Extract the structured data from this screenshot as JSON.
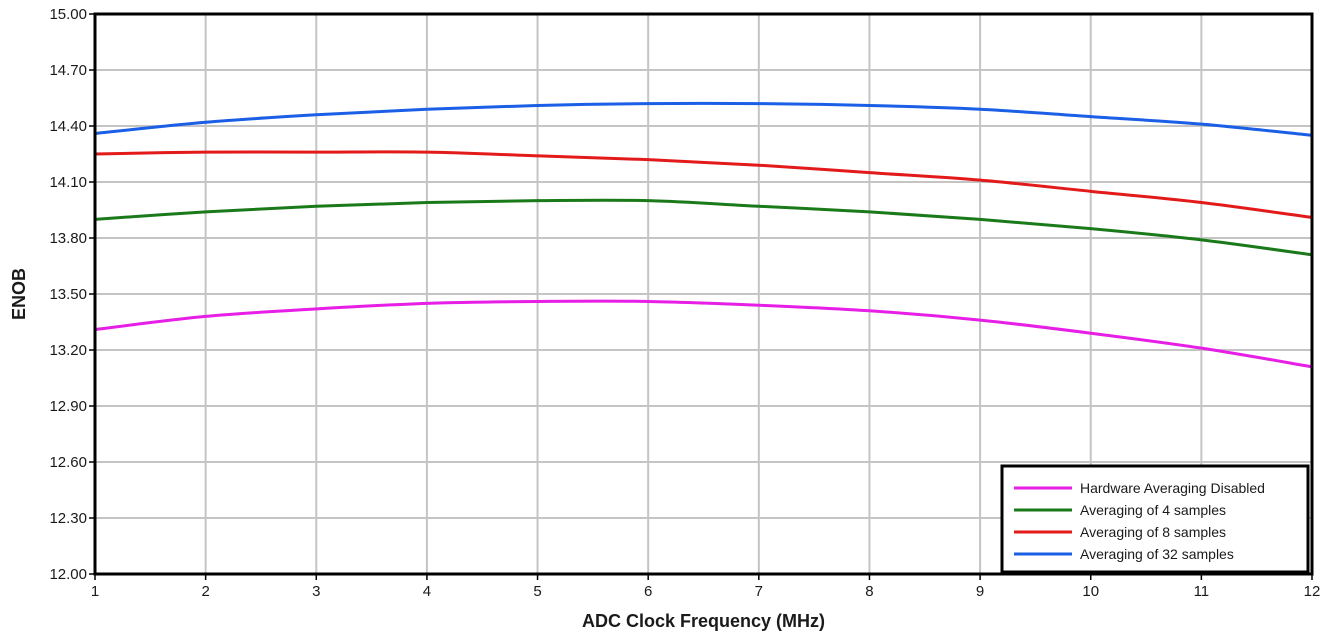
{
  "chart_data": {
    "type": "line",
    "title": "",
    "xlabel": "ADC Clock Frequency (MHz)",
    "ylabel": "ENOB",
    "xlim": [
      1,
      12
    ],
    "ylim": [
      12.0,
      15.0
    ],
    "x_ticks": [
      1,
      2,
      3,
      4,
      5,
      6,
      7,
      8,
      9,
      10,
      11,
      12
    ],
    "x_tick_labels": [
      "1",
      "2",
      "3",
      "4",
      "5",
      "6",
      "7",
      "8",
      "9",
      "10",
      "11",
      "12"
    ],
    "y_ticks": [
      12.0,
      12.3,
      12.6,
      12.9,
      13.2,
      13.5,
      13.8,
      14.1,
      14.4,
      14.7,
      15.0
    ],
    "y_tick_labels": [
      "12.00",
      "12.30",
      "12.60",
      "12.90",
      "13.20",
      "13.50",
      "13.80",
      "14.10",
      "14.40",
      "14.70",
      "15.00"
    ],
    "grid": true,
    "legend_position": "bottom-right",
    "x": [
      1,
      2,
      3,
      4,
      5,
      6,
      7,
      8,
      9,
      10,
      11,
      12
    ],
    "series": [
      {
        "name": "Hardware Averaging Disabled",
        "color": "#e61ee6",
        "values": [
          13.31,
          13.38,
          13.42,
          13.45,
          13.46,
          13.46,
          13.44,
          13.41,
          13.36,
          13.29,
          13.21,
          13.11
        ]
      },
      {
        "name": "Averaging of 4 samples",
        "color": "#1a7a1a",
        "values": [
          13.9,
          13.94,
          13.97,
          13.99,
          14.0,
          14.0,
          13.97,
          13.94,
          13.9,
          13.85,
          13.79,
          13.71
        ]
      },
      {
        "name": "Averaging of 8 samples",
        "color": "#e31a1a",
        "values": [
          14.25,
          14.26,
          14.26,
          14.26,
          14.24,
          14.22,
          14.19,
          14.15,
          14.11,
          14.05,
          13.99,
          13.91
        ]
      },
      {
        "name": "Averaging of 32 samples",
        "color": "#1a5fe6",
        "values": [
          14.36,
          14.42,
          14.46,
          14.49,
          14.51,
          14.52,
          14.52,
          14.51,
          14.49,
          14.45,
          14.41,
          14.35
        ]
      }
    ]
  }
}
